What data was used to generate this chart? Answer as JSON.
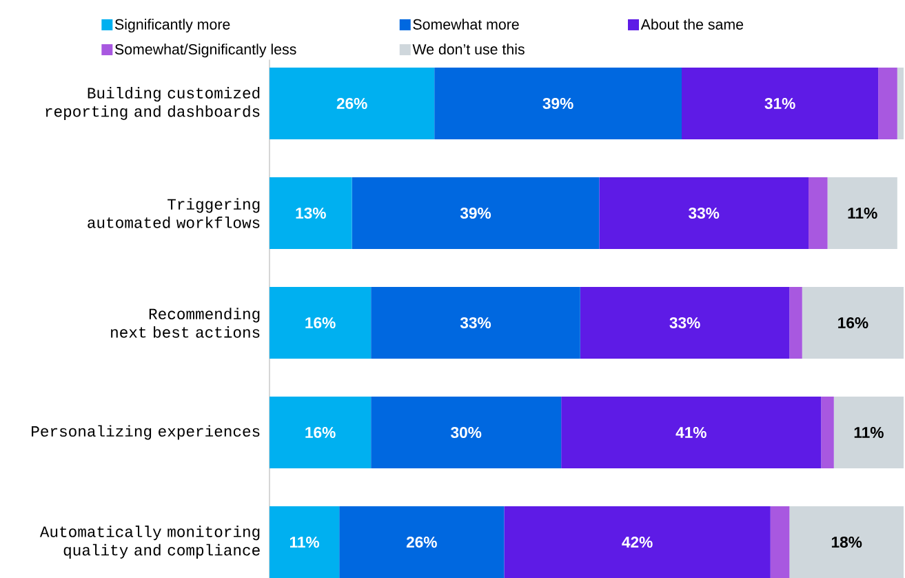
{
  "chart_data": {
    "type": "bar",
    "orientation": "horizontal",
    "stacked": true,
    "legend": "top",
    "tick_labels": "y",
    "xlim": [
      0,
      100
    ],
    "categories": [
      "Building customized reporting and dashboards",
      "Triggering automated workflows",
      "Recommending next best actions",
      "Personalizing experiences",
      "Automatically monitoring quality and compliance"
    ],
    "series": [
      {
        "name": "Significantly more",
        "color": "#00b0f0",
        "values": [
          26,
          13,
          16,
          16,
          11
        ],
        "value_labels": [
          "26%",
          "13%",
          "16%",
          "16%",
          "11%"
        ]
      },
      {
        "name": "Somewhat more",
        "color": "#0068e0",
        "values": [
          39,
          39,
          33,
          30,
          26
        ],
        "value_labels": [
          "39%",
          "39%",
          "33%",
          "30%",
          "26%"
        ]
      },
      {
        "name": "About the same",
        "color": "#5e1be6",
        "values": [
          31,
          33,
          33,
          41,
          42
        ],
        "value_labels": [
          "31%",
          "33%",
          "33%",
          "41%",
          "42%"
        ]
      },
      {
        "name": "Somewhat/Significantly less",
        "color": "#a858e0",
        "values": [
          3,
          3,
          2,
          2,
          3
        ],
        "value_labels": [
          null,
          null,
          null,
          null,
          null
        ]
      },
      {
        "name": "We don’t use this",
        "color": "#cfd7dc",
        "values": [
          1,
          11,
          16,
          11,
          18
        ],
        "value_labels": [
          null,
          "11%",
          "16%",
          "11%",
          "18%"
        ]
      }
    ]
  }
}
